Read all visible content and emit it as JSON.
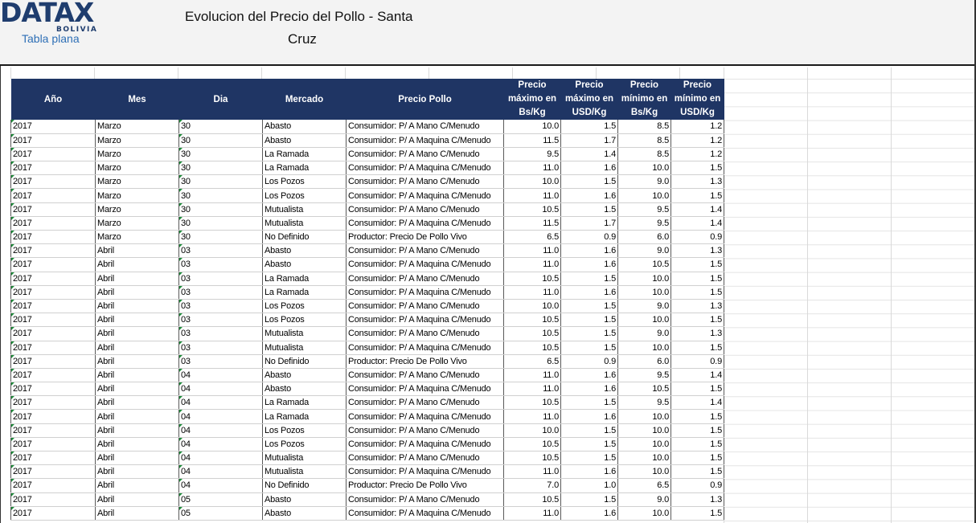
{
  "header": {
    "logo": "DATAX",
    "logo_sub": "BOLIVIA",
    "subtitle": "Tabla plana",
    "title_line1": "Evolucion del Precio del Pollo  - Santa",
    "title_line2": "Cruz"
  },
  "table": {
    "columns": {
      "anio": "Año",
      "mes": "Mes",
      "dia": "Dia",
      "mercado": "Mercado",
      "precio_pollo": "Precio Pollo",
      "pmax_bs": [
        "Precio",
        "máximo en",
        "Bs/Kg"
      ],
      "pmax_usd": [
        "Precio",
        "máximo en",
        "USD/Kg"
      ],
      "pmin_bs": [
        "Precio",
        "mínimo en",
        "Bs/Kg"
      ],
      "pmin_usd": [
        "Precio",
        "mínimo en",
        "USD/Kg"
      ]
    },
    "rows": [
      [
        "2017",
        "Marzo",
        "30",
        "Abasto",
        "Consumidor: P/ A Mano C/Menudo",
        "10.0",
        "1.5",
        "8.5",
        "1.2"
      ],
      [
        "2017",
        "Marzo",
        "30",
        "Abasto",
        "Consumidor: P/ A Maquina C/Menudo",
        "11.5",
        "1.7",
        "8.5",
        "1.2"
      ],
      [
        "2017",
        "Marzo",
        "30",
        "La Ramada",
        "Consumidor: P/ A Mano C/Menudo",
        "9.5",
        "1.4",
        "8.5",
        "1.2"
      ],
      [
        "2017",
        "Marzo",
        "30",
        "La Ramada",
        "Consumidor: P/ A Maquina C/Menudo",
        "11.0",
        "1.6",
        "10.0",
        "1.5"
      ],
      [
        "2017",
        "Marzo",
        "30",
        "Los Pozos",
        "Consumidor: P/ A Mano C/Menudo",
        "10.0",
        "1.5",
        "9.0",
        "1.3"
      ],
      [
        "2017",
        "Marzo",
        "30",
        "Los Pozos",
        "Consumidor: P/ A Maquina C/Menudo",
        "11.0",
        "1.6",
        "10.0",
        "1.5"
      ],
      [
        "2017",
        "Marzo",
        "30",
        "Mutualista",
        "Consumidor: P/ A Mano C/Menudo",
        "10.5",
        "1.5",
        "9.5",
        "1.4"
      ],
      [
        "2017",
        "Marzo",
        "30",
        "Mutualista",
        "Consumidor: P/ A Maquina C/Menudo",
        "11.5",
        "1.7",
        "9.5",
        "1.4"
      ],
      [
        "2017",
        "Marzo",
        "30",
        "No Definido",
        "Productor: Precio De Pollo Vivo",
        "6.5",
        "0.9",
        "6.0",
        "0.9"
      ],
      [
        "2017",
        "Abril",
        "03",
        "Abasto",
        "Consumidor: P/ A Mano C/Menudo",
        "11.0",
        "1.6",
        "9.0",
        "1.3"
      ],
      [
        "2017",
        "Abril",
        "03",
        "Abasto",
        "Consumidor: P/ A Maquina C/Menudo",
        "11.0",
        "1.6",
        "10.5",
        "1.5"
      ],
      [
        "2017",
        "Abril",
        "03",
        "La Ramada",
        "Consumidor: P/ A Mano C/Menudo",
        "10.5",
        "1.5",
        "10.0",
        "1.5"
      ],
      [
        "2017",
        "Abril",
        "03",
        "La Ramada",
        "Consumidor: P/ A Maquina C/Menudo",
        "11.0",
        "1.6",
        "10.0",
        "1.5"
      ],
      [
        "2017",
        "Abril",
        "03",
        "Los Pozos",
        "Consumidor: P/ A Mano C/Menudo",
        "10.0",
        "1.5",
        "9.0",
        "1.3"
      ],
      [
        "2017",
        "Abril",
        "03",
        "Los Pozos",
        "Consumidor: P/ A Maquina C/Menudo",
        "10.5",
        "1.5",
        "10.0",
        "1.5"
      ],
      [
        "2017",
        "Abril",
        "03",
        "Mutualista",
        "Consumidor: P/ A Mano C/Menudo",
        "10.5",
        "1.5",
        "9.0",
        "1.3"
      ],
      [
        "2017",
        "Abril",
        "03",
        "Mutualista",
        "Consumidor: P/ A Maquina C/Menudo",
        "10.5",
        "1.5",
        "10.0",
        "1.5"
      ],
      [
        "2017",
        "Abril",
        "03",
        "No Definido",
        "Productor: Precio De Pollo Vivo",
        "6.5",
        "0.9",
        "6.0",
        "0.9"
      ],
      [
        "2017",
        "Abril",
        "04",
        "Abasto",
        "Consumidor: P/ A Mano C/Menudo",
        "11.0",
        "1.6",
        "9.5",
        "1.4"
      ],
      [
        "2017",
        "Abril",
        "04",
        "Abasto",
        "Consumidor: P/ A Maquina C/Menudo",
        "11.0",
        "1.6",
        "10.5",
        "1.5"
      ],
      [
        "2017",
        "Abril",
        "04",
        "La Ramada",
        "Consumidor: P/ A Mano C/Menudo",
        "10.5",
        "1.5",
        "9.5",
        "1.4"
      ],
      [
        "2017",
        "Abril",
        "04",
        "La Ramada",
        "Consumidor: P/ A Maquina C/Menudo",
        "11.0",
        "1.6",
        "10.0",
        "1.5"
      ],
      [
        "2017",
        "Abril",
        "04",
        "Los Pozos",
        "Consumidor: P/ A Mano C/Menudo",
        "10.0",
        "1.5",
        "10.0",
        "1.5"
      ],
      [
        "2017",
        "Abril",
        "04",
        "Los Pozos",
        "Consumidor: P/ A Maquina C/Menudo",
        "10.5",
        "1.5",
        "10.0",
        "1.5"
      ],
      [
        "2017",
        "Abril",
        "04",
        "Mutualista",
        "Consumidor: P/ A Mano C/Menudo",
        "10.5",
        "1.5",
        "10.0",
        "1.5"
      ],
      [
        "2017",
        "Abril",
        "04",
        "Mutualista",
        "Consumidor: P/ A Maquina C/Menudo",
        "11.0",
        "1.6",
        "10.0",
        "1.5"
      ],
      [
        "2017",
        "Abril",
        "04",
        "No Definido",
        "Productor: Precio De Pollo Vivo",
        "7.0",
        "1.0",
        "6.5",
        "0.9"
      ],
      [
        "2017",
        "Abril",
        "05",
        "Abasto",
        "Consumidor: P/ A Mano C/Menudo",
        "10.5",
        "1.5",
        "9.0",
        "1.3"
      ],
      [
        "2017",
        "Abril",
        "05",
        "Abasto",
        "Consumidor: P/ A Maquina C/Menudo",
        "11.0",
        "1.6",
        "10.0",
        "1.5"
      ]
    ]
  }
}
